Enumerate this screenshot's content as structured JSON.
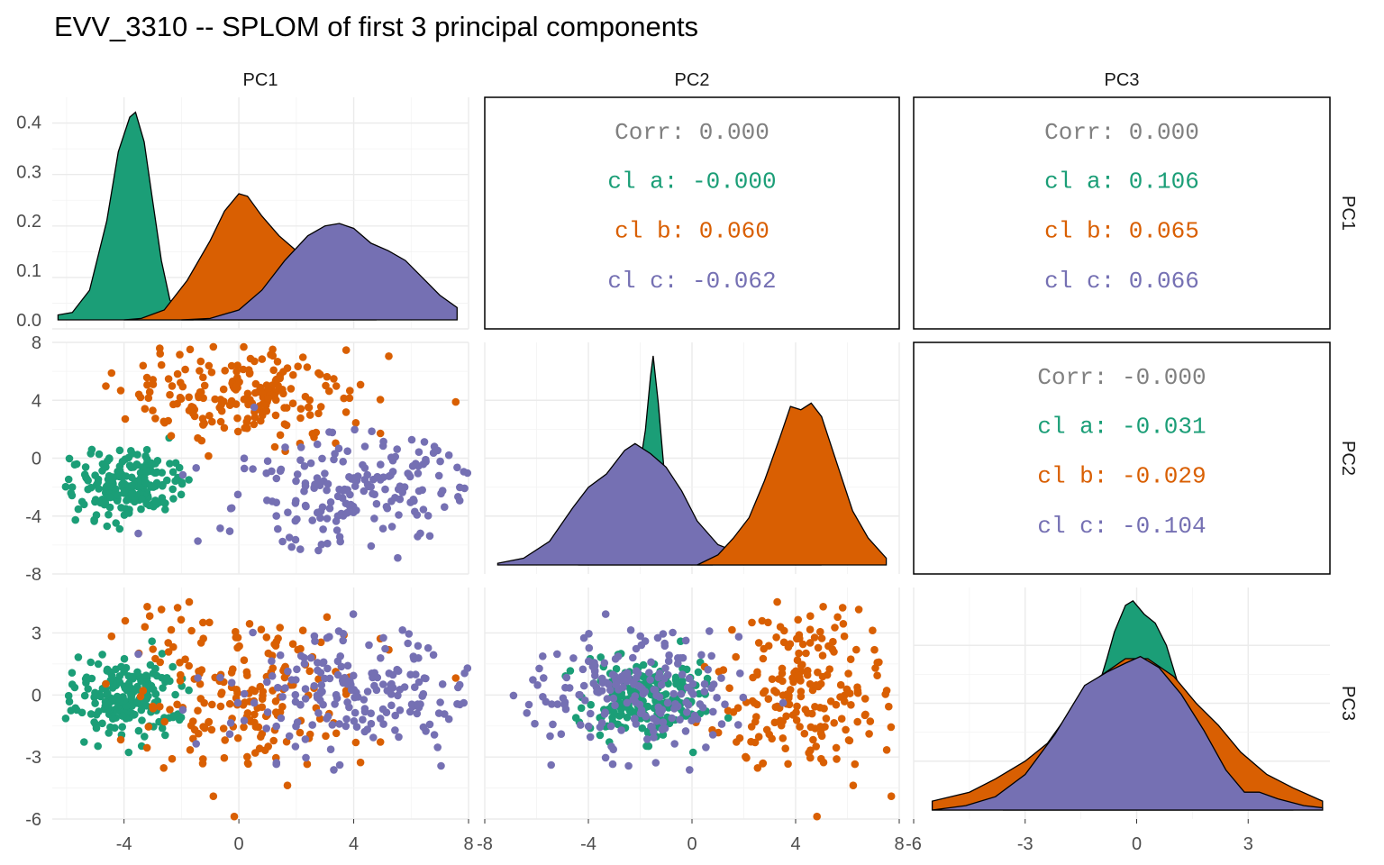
{
  "chart_data": {
    "type": "scatter",
    "subtype": "scatterplot-matrix",
    "title": "EVV_3310 -- SPLOM of first 3 principal components",
    "variables": [
      "PC1",
      "PC2",
      "PC3"
    ],
    "groups": [
      {
        "name": "a",
        "color": "#1B9E77"
      },
      {
        "name": "b",
        "color": "#D95F02"
      },
      {
        "name": "c",
        "color": "#7570B3"
      }
    ],
    "axes": {
      "PC1": {
        "range": [
          -6.5,
          8.0
        ],
        "ticks": [
          -4,
          0,
          4,
          8
        ],
        "tick_labels": [
          "-4",
          "0",
          "4",
          "8"
        ]
      },
      "PC2": {
        "range": [
          -8.0,
          8.0
        ],
        "ticks": [
          -8,
          -4,
          0,
          4,
          8
        ],
        "tick_labels": [
          "-8",
          "-4",
          "0",
          "4",
          "8"
        ]
      },
      "PC3": {
        "range": [
          -6.0,
          5.2
        ],
        "ticks": [
          -6,
          -3,
          0,
          3
        ],
        "tick_labels": [
          "-6",
          "-3",
          "0",
          "3"
        ]
      }
    },
    "density_axis": {
      "range": [
        0,
        0.45
      ],
      "ticks": [
        0.0,
        0.1,
        0.2,
        0.3,
        0.4
      ],
      "tick_labels": [
        "0.0",
        "0.1",
        "0.2",
        "0.3",
        "0.4"
      ]
    },
    "bottom_tick_labels": [
      [
        "-4",
        "0",
        "4",
        "8"
      ],
      [
        "-8",
        "-4",
        "0",
        "4",
        "8"
      ],
      [
        "-6",
        "-3",
        "0",
        "3"
      ]
    ],
    "left_tick_labels": [
      [
        "0.0",
        "0.1",
        "0.2",
        "0.3",
        "0.4"
      ],
      [
        "-8",
        "-4",
        "0",
        "4",
        "8"
      ],
      [
        "-6",
        "-3",
        "0",
        "3"
      ]
    ],
    "groups_stats": {
      "a": {
        "PC1": [
          -3.8,
          0.9
        ],
        "PC2": [
          -1.8,
          1.2
        ],
        "PC3": [
          -0.1,
          1.0
        ]
      },
      "b": {
        "PC1": [
          0.2,
          2.0
        ],
        "PC2": [
          4.5,
          1.6
        ],
        "PC3": [
          0.0,
          2.0
        ]
      },
      "c": {
        "PC1": [
          3.8,
          2.2
        ],
        "PC2": [
          -2.2,
          2.0
        ],
        "PC3": [
          0.0,
          1.4
        ]
      }
    },
    "densities": {
      "PC1": {
        "a": [
          [
            -6.3,
            0.01
          ],
          [
            -5.8,
            0.015
          ],
          [
            -5.2,
            0.06
          ],
          [
            -4.6,
            0.2
          ],
          [
            -4.2,
            0.34
          ],
          [
            -3.8,
            0.41
          ],
          [
            -3.6,
            0.42
          ],
          [
            -3.3,
            0.36
          ],
          [
            -3.0,
            0.24
          ],
          [
            -2.7,
            0.12
          ],
          [
            -2.4,
            0.04
          ],
          [
            -2.0,
            0.01
          ],
          [
            -1.6,
            0.002
          ]
        ],
        "b": [
          [
            -4.0,
            0.0
          ],
          [
            -3.4,
            0.003
          ],
          [
            -2.6,
            0.02
          ],
          [
            -1.8,
            0.08
          ],
          [
            -1.0,
            0.16
          ],
          [
            -0.5,
            0.22
          ],
          [
            0.0,
            0.255
          ],
          [
            0.3,
            0.25
          ],
          [
            0.8,
            0.21
          ],
          [
            1.4,
            0.17
          ],
          [
            2.0,
            0.14
          ],
          [
            2.6,
            0.09
          ],
          [
            3.2,
            0.04
          ],
          [
            4.0,
            0.01
          ],
          [
            4.8,
            0.0
          ]
        ],
        "c": [
          [
            -2.0,
            0.0
          ],
          [
            -1.0,
            0.003
          ],
          [
            0.0,
            0.02
          ],
          [
            0.8,
            0.06
          ],
          [
            1.6,
            0.12
          ],
          [
            2.4,
            0.17
          ],
          [
            3.0,
            0.19
          ],
          [
            3.5,
            0.195
          ],
          [
            4.0,
            0.185
          ],
          [
            4.6,
            0.155
          ],
          [
            5.2,
            0.14
          ],
          [
            5.8,
            0.12
          ],
          [
            6.4,
            0.085
          ],
          [
            7.0,
            0.05
          ],
          [
            7.6,
            0.025
          ]
        ]
      },
      "PC2": {
        "a": [
          [
            -4.4,
            0.0
          ],
          [
            -3.6,
            0.005
          ],
          [
            -3.0,
            0.04
          ],
          [
            -2.6,
            0.14
          ],
          [
            -2.2,
            0.26
          ],
          [
            -2.0,
            0.3
          ],
          [
            -1.8,
            0.4
          ],
          [
            -1.6,
            0.56
          ],
          [
            -1.5,
            0.62
          ],
          [
            -1.3,
            0.48
          ],
          [
            -1.1,
            0.3
          ],
          [
            -0.8,
            0.12
          ],
          [
            -0.4,
            0.04
          ],
          [
            0.2,
            0.01
          ],
          [
            0.8,
            0.0
          ]
        ],
        "b": [
          [
            0.2,
            0.0
          ],
          [
            1.0,
            0.03
          ],
          [
            1.6,
            0.08
          ],
          [
            2.2,
            0.14
          ],
          [
            2.8,
            0.25
          ],
          [
            3.4,
            0.38
          ],
          [
            3.8,
            0.47
          ],
          [
            4.2,
            0.46
          ],
          [
            4.6,
            0.48
          ],
          [
            5.0,
            0.44
          ],
          [
            5.6,
            0.3
          ],
          [
            6.2,
            0.16
          ],
          [
            6.8,
            0.08
          ],
          [
            7.5,
            0.02
          ]
        ],
        "c": [
          [
            -7.5,
            0.005
          ],
          [
            -6.5,
            0.02
          ],
          [
            -5.5,
            0.07
          ],
          [
            -4.6,
            0.17
          ],
          [
            -4.0,
            0.23
          ],
          [
            -3.3,
            0.27
          ],
          [
            -2.6,
            0.34
          ],
          [
            -2.2,
            0.36
          ],
          [
            -1.6,
            0.33
          ],
          [
            -1.0,
            0.29
          ],
          [
            -0.4,
            0.22
          ],
          [
            0.2,
            0.13
          ],
          [
            1.0,
            0.06
          ],
          [
            2.0,
            0.03
          ],
          [
            3.0,
            0.015
          ],
          [
            4.0,
            0.005
          ],
          [
            5.0,
            0.0
          ]
        ]
      },
      "PC3": {
        "a": [
          [
            -3.6,
            0.0
          ],
          [
            -2.6,
            0.03
          ],
          [
            -1.8,
            0.09
          ],
          [
            -1.2,
            0.23
          ],
          [
            -0.8,
            0.34
          ],
          [
            -0.6,
            0.4
          ],
          [
            -0.3,
            0.46
          ],
          [
            -0.1,
            0.47
          ],
          [
            0.2,
            0.44
          ],
          [
            0.5,
            0.42
          ],
          [
            0.8,
            0.37
          ],
          [
            1.2,
            0.26
          ],
          [
            1.8,
            0.12
          ],
          [
            2.6,
            0.05
          ],
          [
            3.4,
            0.02
          ],
          [
            4.2,
            0.005
          ]
        ],
        "b": [
          [
            -5.5,
            0.02
          ],
          [
            -4.5,
            0.04
          ],
          [
            -3.8,
            0.07
          ],
          [
            -3.0,
            0.11
          ],
          [
            -2.4,
            0.15
          ],
          [
            -1.8,
            0.22
          ],
          [
            -1.0,
            0.3
          ],
          [
            -0.3,
            0.34
          ],
          [
            0.3,
            0.34
          ],
          [
            1.0,
            0.3
          ],
          [
            1.6,
            0.24
          ],
          [
            2.2,
            0.19
          ],
          [
            2.8,
            0.13
          ],
          [
            3.5,
            0.08
          ],
          [
            4.2,
            0.05
          ],
          [
            5.0,
            0.02
          ]
        ],
        "c": [
          [
            -5.5,
            0.0
          ],
          [
            -4.6,
            0.01
          ],
          [
            -3.8,
            0.03
          ],
          [
            -3.0,
            0.08
          ],
          [
            -2.2,
            0.17
          ],
          [
            -1.4,
            0.28
          ],
          [
            -0.8,
            0.31
          ],
          [
            -0.3,
            0.33
          ],
          [
            0.1,
            0.345
          ],
          [
            0.6,
            0.32
          ],
          [
            1.2,
            0.26
          ],
          [
            1.8,
            0.18
          ],
          [
            2.4,
            0.09
          ],
          [
            2.9,
            0.04
          ],
          [
            3.3,
            0.04
          ],
          [
            3.8,
            0.025
          ],
          [
            4.5,
            0.01
          ],
          [
            5.0,
            0.005
          ]
        ]
      }
    },
    "correlations": [
      {
        "row": 0,
        "col": 1,
        "lines": [
          {
            "label": "Corr: 0.000",
            "group": "overall"
          },
          {
            "label": "cl a: -0.000",
            "group": "a"
          },
          {
            "label": "cl b: 0.060",
            "group": "b"
          },
          {
            "label": "cl c: -0.062",
            "group": "c"
          }
        ]
      },
      {
        "row": 0,
        "col": 2,
        "lines": [
          {
            "label": "Corr: 0.000",
            "group": "overall"
          },
          {
            "label": "cl a: 0.106",
            "group": "a"
          },
          {
            "label": "cl b: 0.065",
            "group": "b"
          },
          {
            "label": "cl c: 0.066",
            "group": "c"
          }
        ]
      },
      {
        "row": 1,
        "col": 2,
        "lines": [
          {
            "label": "Corr: -0.000",
            "group": "overall"
          },
          {
            "label": "cl a: -0.031",
            "group": "a"
          },
          {
            "label": "cl b: -0.029",
            "group": "b"
          },
          {
            "label": "cl c: -0.104",
            "group": "c"
          }
        ]
      }
    ],
    "overall_text_color": "#808080",
    "grid": true,
    "legend": "none"
  }
}
